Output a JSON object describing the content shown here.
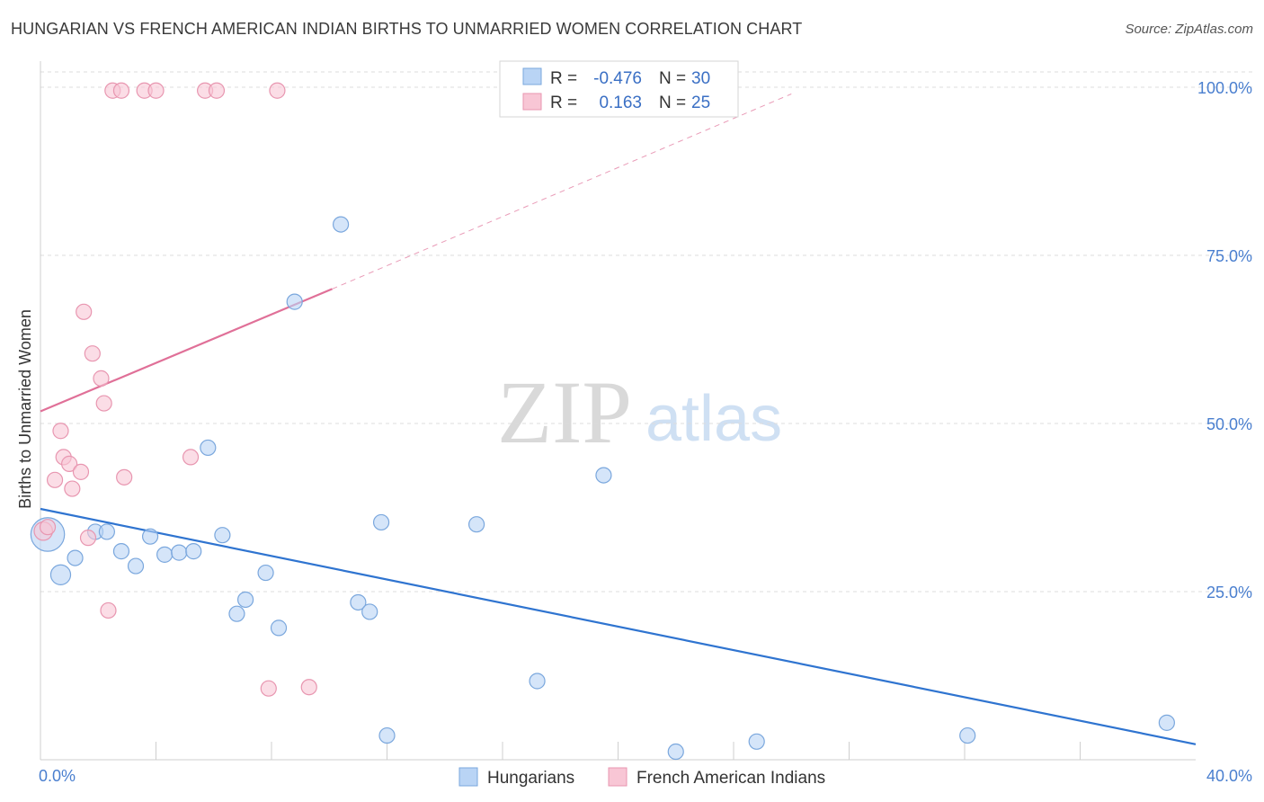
{
  "title": "HUNGARIAN VS FRENCH AMERICAN INDIAN BIRTHS TO UNMARRIED WOMEN CORRELATION CHART",
  "source": "Source: ZipAtlas.com",
  "watermark": {
    "zip": "ZIP",
    "atlas": "atlas"
  },
  "colors": {
    "hungarians_fill": "#b9d4f5",
    "hungarians_stroke": "#7aa7dd",
    "hungarians_line": "#2f74d0",
    "french_fill": "#f8c6d5",
    "french_stroke": "#e896b0",
    "french_line": "#e07098",
    "grid": "#dcdcdc",
    "tick_text": "#4a7fcf"
  },
  "stats_box": {
    "rows": [
      {
        "r_label": "R =",
        "r_value": "-0.476",
        "n_label": "N =",
        "n_value": "30"
      },
      {
        "r_label": "R =",
        "r_value": "0.163",
        "n_label": "N =",
        "n_value": "25"
      }
    ]
  },
  "chart_data": {
    "type": "scatter",
    "title": "HUNGARIAN VS FRENCH AMERICAN INDIAN BIRTHS TO UNMARRIED WOMEN CORRELATION CHART",
    "xlabel": "",
    "ylabel": "Births to Unmarried Women",
    "xlim": [
      0,
      40
    ],
    "ylim": [
      0,
      100
    ],
    "x_tick_labels": [
      "0.0%",
      "40.0%"
    ],
    "y_ticks": [
      25,
      50,
      75,
      100
    ],
    "y_tick_labels": [
      "25.0%",
      "50.0%",
      "75.0%",
      "100.0%"
    ],
    "grid": true,
    "legend_position": "bottom-center",
    "series": [
      {
        "name": "Hungarians",
        "points": [
          {
            "x": 0.25,
            "y": 33.5,
            "size": 2.2
          },
          {
            "x": 0.7,
            "y": 27.5,
            "size": 1.3
          },
          {
            "x": 1.2,
            "y": 30.0,
            "size": 1.0
          },
          {
            "x": 1.9,
            "y": 33.9,
            "size": 1.0
          },
          {
            "x": 2.3,
            "y": 33.9,
            "size": 1.0
          },
          {
            "x": 2.8,
            "y": 31.0,
            "size": 1.0
          },
          {
            "x": 3.3,
            "y": 28.8,
            "size": 1.0
          },
          {
            "x": 3.8,
            "y": 33.2,
            "size": 1.0
          },
          {
            "x": 4.3,
            "y": 30.5,
            "size": 1.0
          },
          {
            "x": 4.8,
            "y": 30.8,
            "size": 1.0
          },
          {
            "x": 5.3,
            "y": 31.0,
            "size": 1.0
          },
          {
            "x": 5.8,
            "y": 46.4,
            "size": 1.0
          },
          {
            "x": 6.3,
            "y": 33.4,
            "size": 1.0
          },
          {
            "x": 6.8,
            "y": 21.7,
            "size": 1.0
          },
          {
            "x": 7.1,
            "y": 23.8,
            "size": 1.0
          },
          {
            "x": 7.8,
            "y": 27.8,
            "size": 1.0
          },
          {
            "x": 8.25,
            "y": 19.6,
            "size": 1.0
          },
          {
            "x": 8.8,
            "y": 68.1,
            "size": 1.0
          },
          {
            "x": 10.4,
            "y": 79.6,
            "size": 1.0
          },
          {
            "x": 11.0,
            "y": 23.4,
            "size": 1.0
          },
          {
            "x": 11.4,
            "y": 22.0,
            "size": 1.0
          },
          {
            "x": 11.8,
            "y": 35.3,
            "size": 1.0
          },
          {
            "x": 12.0,
            "y": 3.6,
            "size": 1.0
          },
          {
            "x": 15.1,
            "y": 35.0,
            "size": 1.0
          },
          {
            "x": 17.2,
            "y": 11.7,
            "size": 1.0
          },
          {
            "x": 19.5,
            "y": 42.3,
            "size": 1.0
          },
          {
            "x": 22.0,
            "y": 1.2,
            "size": 1.0
          },
          {
            "x": 24.8,
            "y": 2.7,
            "size": 1.0
          },
          {
            "x": 32.1,
            "y": 3.6,
            "size": 1.0
          },
          {
            "x": 39.0,
            "y": 5.5,
            "size": 1.0
          }
        ],
        "trend": {
          "x": [
            0,
            40
          ],
          "y": [
            37.3,
            2.3
          ],
          "style": "solid"
        }
      },
      {
        "name": "French American Indians",
        "points": [
          {
            "x": 0.1,
            "y": 34.0,
            "size": 1.2
          },
          {
            "x": 0.25,
            "y": 34.6,
            "size": 1.0
          },
          {
            "x": 0.5,
            "y": 41.6,
            "size": 1.0
          },
          {
            "x": 0.7,
            "y": 48.9,
            "size": 1.0
          },
          {
            "x": 0.8,
            "y": 45.0,
            "size": 1.0
          },
          {
            "x": 1.0,
            "y": 44.0,
            "size": 1.0
          },
          {
            "x": 1.1,
            "y": 40.3,
            "size": 1.0
          },
          {
            "x": 1.4,
            "y": 42.8,
            "size": 1.0
          },
          {
            "x": 1.5,
            "y": 66.6,
            "size": 1.0
          },
          {
            "x": 1.65,
            "y": 33.0,
            "size": 1.0
          },
          {
            "x": 1.8,
            "y": 60.4,
            "size": 1.0
          },
          {
            "x": 2.1,
            "y": 56.7,
            "size": 1.0
          },
          {
            "x": 2.2,
            "y": 53.0,
            "size": 1.0
          },
          {
            "x": 2.35,
            "y": 22.2,
            "size": 1.0
          },
          {
            "x": 2.5,
            "y": 99.5,
            "size": 1.0
          },
          {
            "x": 2.8,
            "y": 99.5,
            "size": 1.0
          },
          {
            "x": 2.9,
            "y": 42.0,
            "size": 1.0
          },
          {
            "x": 3.6,
            "y": 99.5,
            "size": 1.0
          },
          {
            "x": 4.0,
            "y": 99.5,
            "size": 1.0
          },
          {
            "x": 5.2,
            "y": 45.0,
            "size": 1.0
          },
          {
            "x": 5.7,
            "y": 99.5,
            "size": 1.0
          },
          {
            "x": 6.1,
            "y": 99.5,
            "size": 1.0
          },
          {
            "x": 7.9,
            "y": 10.6,
            "size": 1.0
          },
          {
            "x": 8.2,
            "y": 99.5,
            "size": 1.0
          },
          {
            "x": 9.3,
            "y": 10.8,
            "size": 1.0
          }
        ],
        "trend": {
          "x": [
            0,
            10.1
          ],
          "y": [
            51.8,
            70.0
          ],
          "style": "solid",
          "extension": {
            "x": [
              10.1,
              26.0
            ],
            "y": [
              70.0,
              99.0
            ],
            "style": "dashed"
          }
        }
      }
    ]
  }
}
